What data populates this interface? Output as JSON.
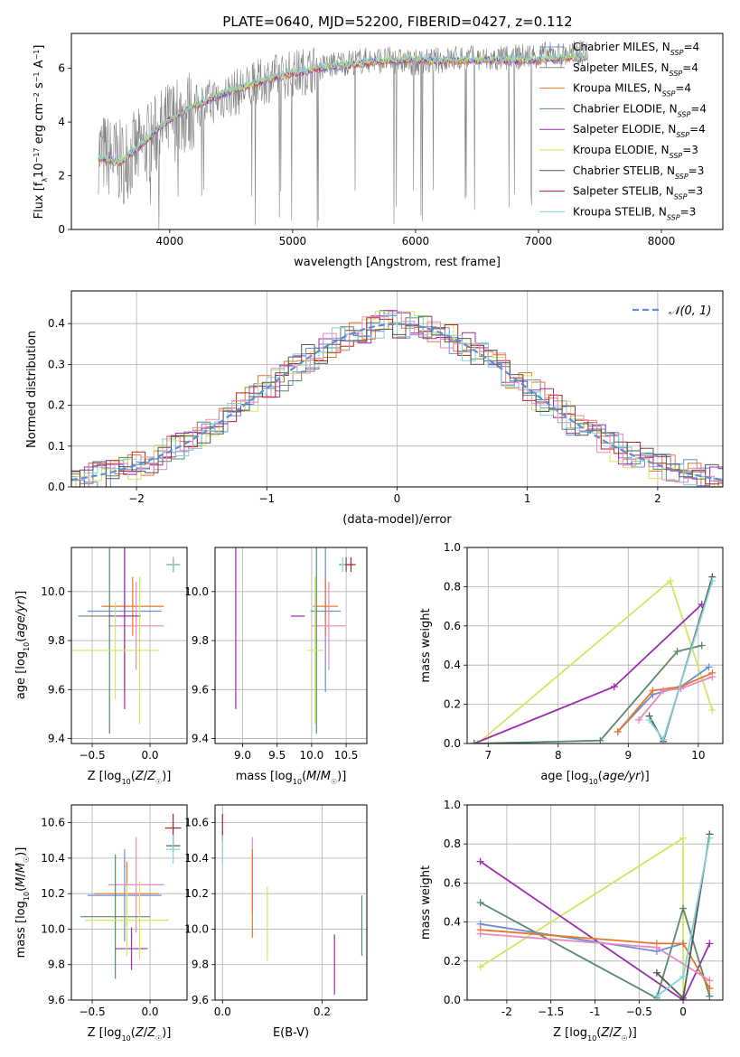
{
  "title": "PLATE=0640, MJD=52200, FIBERID=0427, z=0.112",
  "colors": {
    "chabrier_miles": "#6a8fd9",
    "salpeter_miles": "#8c8c8c",
    "kroupa_miles": "#e8762b",
    "chabrier_elodie": "#5b8a68",
    "salpeter_elodie": "#9b2fae",
    "kroupa_elodie": "#cfe860",
    "chabrier_stelib": "#555555",
    "salpeter_stelib": "#b22222",
    "kroupa_stelib": "#7fd3d8",
    "pink": "#e889c2",
    "normal": "#5b8ed6",
    "grid": "#b0b0b0",
    "spectrum": "#808080"
  },
  "chart_data": [
    {
      "id": "spectrum",
      "type": "line",
      "xlabel": "wavelength [Angstrom, rest frame]",
      "ylabel": "Flux [f_λ10^-17 erg cm^-2 s^-1 A^-1]",
      "xlim": [
        3200,
        8500
      ],
      "ylim": [
        0,
        7.3
      ],
      "xticks": [
        4000,
        5000,
        6000,
        7000,
        8000
      ],
      "yticks": [
        0,
        2,
        4,
        6
      ],
      "grid": false,
      "legend_position": "top-right",
      "legend": [
        "Chabrier MILES, N_SSP=4",
        "Salpeter MILES, N_SSP=4",
        "Kroupa MILES, N_SSP=4",
        "Chabrier ELODIE, N_SSP=4",
        "Salpeter ELODIE, N_SSP=4",
        "Kroupa ELODIE, N_SSP=3",
        "Chabrier STELIB, N_SSP=3",
        "Salpeter STELIB, N_SSP=3",
        "Kroupa STELIB, N_SSP=3"
      ],
      "data_x": [
        3420,
        3600,
        3800,
        4000,
        4200,
        4400,
        4600,
        4800,
        5000,
        5200,
        5400,
        5600,
        5800,
        6000,
        6200,
        6400,
        6600,
        6800,
        7000,
        7200,
        7400
      ],
      "data_y": [
        2.9,
        2.5,
        3.1,
        4.0,
        4.5,
        4.9,
        5.2,
        5.6,
        5.8,
        6.0,
        6.2,
        6.3,
        6.3,
        6.2,
        6.3,
        6.4,
        6.3,
        6.4,
        6.5,
        6.5,
        6.6
      ],
      "model_y": [
        2.7,
        2.5,
        3.3,
        4.1,
        4.6,
        5.0,
        5.3,
        5.6,
        5.8,
        6.0,
        6.1,
        6.2,
        6.3,
        6.3,
        6.3,
        6.3,
        6.3,
        6.3,
        6.3,
        6.4,
        6.4
      ]
    },
    {
      "id": "residuals",
      "type": "line",
      "xlabel": "(data-model)/error",
      "ylabel": "Normed distribution",
      "xlim": [
        -2.5,
        2.5
      ],
      "ylim": [
        0,
        0.48
      ],
      "xticks": [
        -2,
        -1,
        0,
        1,
        2
      ],
      "yticks": [
        0.0,
        0.1,
        0.2,
        0.3,
        0.4
      ],
      "grid": true,
      "legend_position": "top-right",
      "legend": [
        "𝒩(0, 1)"
      ]
    },
    {
      "id": "age_vs_Z",
      "type": "scatter",
      "xlabel": "Z [log10(Z/Z☉)]",
      "ylabel": "age [log10(age/yr)]",
      "xlim": [
        -0.68,
        0.32
      ],
      "ylim": [
        9.38,
        10.18
      ],
      "xticks": [
        -0.5,
        0.0
      ],
      "yticks": [
        9.4,
        9.6,
        9.8,
        10.0
      ],
      "grid": true,
      "points": [
        {
          "s": "chabrier_miles",
          "x": -0.22,
          "y": 9.92,
          "xerr": 0.32,
          "yerr": 0.33
        },
        {
          "s": "kroupa_miles",
          "x": -0.15,
          "y": 9.94,
          "xerr": 0.27,
          "yerr": 0.12
        },
        {
          "s": "pink",
          "x": -0.12,
          "y": 9.86,
          "xerr": 0.24,
          "yerr": 0.18
        },
        {
          "s": "chabrier_elodie",
          "x": -0.35,
          "y": 9.9,
          "xerr": 0.27,
          "yerr": 0.48
        },
        {
          "s": "salpeter_elodie",
          "x": -0.22,
          "y": 9.9,
          "xerr": 0.14,
          "yerr": 0.38
        },
        {
          "s": "kroupa_elodie",
          "x": -0.3,
          "y": 9.76,
          "xerr": 0.38,
          "yerr": 0.2
        },
        {
          "s": "kroupa_elodie",
          "x": -0.09,
          "y": 9.76,
          "xerr": 0.0,
          "yerr": 0.3
        },
        {
          "s": "chabrier_stelib",
          "x": 0.2,
          "y": 10.11,
          "xerr": 0.06,
          "yerr": 0.03
        },
        {
          "s": "salpeter_stelib",
          "x": 0.2,
          "y": 10.11,
          "xerr": 0.05,
          "yerr": 0.03
        },
        {
          "s": "kroupa_stelib",
          "x": 0.2,
          "y": 10.11,
          "xerr": 0.06,
          "yerr": 0.03
        }
      ]
    },
    {
      "id": "age_vs_mass",
      "type": "scatter",
      "xlabel": "mass [log10(M/M☉)]",
      "ylabel": "",
      "xlim": [
        8.6,
        10.8
      ],
      "ylim": [
        9.38,
        10.18
      ],
      "xticks": [
        9.0,
        9.5,
        10.0,
        10.5
      ],
      "yticks": [
        9.4,
        9.6,
        9.8,
        10.0
      ],
      "grid": true,
      "points": [
        {
          "s": "chabrier_miles",
          "x": 10.2,
          "y": 9.92,
          "xerr": 0.22,
          "yerr": 0.33
        },
        {
          "s": "kroupa_miles",
          "x": 10.2,
          "y": 9.94,
          "xerr": 0.18,
          "yerr": 0.12
        },
        {
          "s": "pink",
          "x": 10.25,
          "y": 9.86,
          "xerr": 0.25,
          "yerr": 0.18
        },
        {
          "s": "chabrier_elodie",
          "x": 10.07,
          "y": 9.9,
          "xerr": 0.0,
          "yerr": 0.48
        },
        {
          "s": "salpeter_elodie",
          "x": 8.9,
          "y": 9.9,
          "xerr": 0.0,
          "yerr": 0.38
        },
        {
          "s": "salpeter_elodie",
          "x": 9.8,
          "y": 9.9,
          "xerr": 0.1,
          "yerr": 0.0
        },
        {
          "s": "kroupa_elodie",
          "x": 10.05,
          "y": 9.76,
          "xerr": 0.12,
          "yerr": 0.3
        },
        {
          "s": "chabrier_stelib",
          "x": 10.5,
          "y": 10.11,
          "xerr": 0.1,
          "yerr": 0.03
        },
        {
          "s": "salpeter_stelib",
          "x": 10.57,
          "y": 10.11,
          "xerr": 0.07,
          "yerr": 0.03
        },
        {
          "s": "kroupa_stelib",
          "x": 10.45,
          "y": 10.11,
          "xerr": 0.03,
          "yerr": 0.03
        }
      ]
    },
    {
      "id": "weight_vs_age",
      "type": "line",
      "xlabel": "age [log10(age/yr)]",
      "ylabel": "mass weight",
      "xlim": [
        6.7,
        10.35
      ],
      "ylim": [
        0,
        1.0
      ],
      "xticks": [
        7,
        8,
        9,
        10
      ],
      "yticks": [
        0.0,
        0.2,
        0.4,
        0.6,
        0.8,
        1.0
      ],
      "grid": true,
      "series": [
        {
          "s": "kroupa_elodie",
          "x": [
            6.85,
            9.6,
            10.2
          ],
          "y": [
            0.0,
            0.83,
            0.17
          ]
        },
        {
          "s": "salpeter_elodie",
          "x": [
            6.8,
            8.8,
            10.05
          ],
          "y": [
            0.0,
            0.29,
            0.71
          ]
        },
        {
          "s": "chabrier_elodie",
          "x": [
            6.8,
            8.6,
            9.7,
            10.05
          ],
          "y": [
            0.0,
            0.015,
            0.47,
            0.5
          ]
        },
        {
          "s": "chabrier_miles",
          "x": [
            8.85,
            9.35,
            9.75,
            10.15
          ],
          "y": [
            0.06,
            0.25,
            0.29,
            0.39
          ]
        },
        {
          "s": "kroupa_miles",
          "x": [
            8.85,
            9.35,
            9.75,
            10.2
          ],
          "y": [
            0.06,
            0.27,
            0.29,
            0.36
          ]
        },
        {
          "s": "pink",
          "x": [
            9.15,
            9.5,
            9.75,
            10.2
          ],
          "y": [
            0.12,
            0.27,
            0.28,
            0.34
          ]
        },
        {
          "s": "chabrier_stelib",
          "x": [
            9.3,
            9.5,
            10.2
          ],
          "y": [
            0.14,
            0.01,
            0.85
          ]
        },
        {
          "s": "kroupa_stelib",
          "x": [
            9.3,
            9.5,
            10.2
          ],
          "y": [
            0.12,
            0.02,
            0.83
          ]
        }
      ]
    },
    {
      "id": "mass_vs_Z",
      "type": "scatter",
      "xlabel": "Z [log10(Z/Z☉)]",
      "ylabel": "mass [log10(M/M☉)]",
      "xlim": [
        -0.68,
        0.32
      ],
      "ylim": [
        9.6,
        10.7
      ],
      "xticks": [
        -0.5,
        0.0
      ],
      "yticks": [
        9.6,
        9.8,
        10.0,
        10.2,
        10.4,
        10.6
      ],
      "grid": true,
      "points": [
        {
          "s": "chabrier_miles",
          "x": -0.22,
          "y": 10.19,
          "xerr": 0.32,
          "yerr": 0.26
        },
        {
          "s": "kroupa_miles",
          "x": -0.2,
          "y": 10.2,
          "xerr": 0.28,
          "yerr": 0.18
        },
        {
          "s": "pink",
          "x": -0.12,
          "y": 10.25,
          "xerr": 0.24,
          "yerr": 0.27
        },
        {
          "s": "chabrier_elodie",
          "x": -0.3,
          "y": 10.07,
          "xerr": 0.3,
          "yerr": 0.35
        },
        {
          "s": "salpeter_elodie",
          "x": -0.16,
          "y": 9.89,
          "xerr": 0.14,
          "yerr": 0.12
        },
        {
          "s": "kroupa_elodie",
          "x": -0.2,
          "y": 10.05,
          "xerr": 0.36,
          "yerr": 0.2
        },
        {
          "s": "kroupa_elodie",
          "x": -0.09,
          "y": 10.05,
          "xerr": 0.0,
          "yerr": 0.22
        },
        {
          "s": "chabrier_stelib",
          "x": 0.2,
          "y": 10.47,
          "xerr": 0.06,
          "yerr": 0.03
        },
        {
          "s": "salpeter_stelib",
          "x": 0.2,
          "y": 10.57,
          "xerr": 0.07,
          "yerr": 0.08
        },
        {
          "s": "kroupa_stelib",
          "x": 0.2,
          "y": 10.45,
          "xerr": 0.06,
          "yerr": 0.08
        }
      ]
    },
    {
      "id": "mass_vs_ebv",
      "type": "scatter",
      "xlabel": "E(B-V)",
      "ylabel": "",
      "xlim": [
        -0.015,
        0.29
      ],
      "ylim": [
        9.6,
        10.7
      ],
      "xticks": [
        0.0,
        0.2
      ],
      "yticks": [
        9.6,
        9.8,
        10.0,
        10.2,
        10.4,
        10.6
      ],
      "grid": true,
      "points": [
        {
          "s": "salpeter_stelib",
          "x": 0.0,
          "y": 10.57,
          "xerr": 0.0,
          "yerr": 0.08
        },
        {
          "s": "kroupa_stelib",
          "x": 0.0,
          "y": 10.45,
          "xerr": 0.0,
          "yerr": 0.08
        },
        {
          "s": "pink",
          "x": 0.06,
          "y": 10.3,
          "xerr": 0.0,
          "yerr": 0.22
        },
        {
          "s": "kroupa_miles",
          "x": 0.06,
          "y": 10.2,
          "xerr": 0.0,
          "yerr": 0.25
        },
        {
          "s": "kroupa_elodie",
          "x": 0.09,
          "y": 10.03,
          "xerr": 0.0,
          "yerr": 0.21
        },
        {
          "s": "salpeter_elodie",
          "x": 0.225,
          "y": 9.8,
          "xerr": 0.0,
          "yerr": 0.17
        },
        {
          "s": "chabrier_elodie",
          "x": 0.28,
          "y": 10.02,
          "xerr": 0.0,
          "yerr": 0.17
        }
      ]
    },
    {
      "id": "weight_vs_Z",
      "type": "line",
      "xlabel": "Z [log10(Z/Z☉)]",
      "ylabel": "mass weight",
      "xlim": [
        -2.45,
        0.45
      ],
      "ylim": [
        0,
        1.0
      ],
      "xticks": [
        -2.0,
        -1.5,
        -1.0,
        -0.5,
        0.0
      ],
      "yticks": [
        0.0,
        0.2,
        0.4,
        0.6,
        0.8,
        1.0
      ],
      "grid": true,
      "series": [
        {
          "s": "kroupa_elodie",
          "x": [
            -2.3,
            0.0,
            0.0
          ],
          "y": [
            0.17,
            0.83,
            0.0
          ]
        },
        {
          "s": "salpeter_elodie",
          "x": [
            -2.3,
            0.0,
            0.3
          ],
          "y": [
            0.71,
            0.0,
            0.29
          ]
        },
        {
          "s": "chabrier_elodie",
          "x": [
            -2.3,
            -0.3,
            0.0,
            0.3
          ],
          "y": [
            0.5,
            0.01,
            0.47,
            0.02
          ]
        },
        {
          "s": "chabrier_miles",
          "x": [
            -2.3,
            -0.3,
            0.0
          ],
          "y": [
            0.39,
            0.25,
            0.29
          ]
        },
        {
          "s": "kroupa_miles",
          "x": [
            -2.3,
            -0.3,
            0.0,
            0.3
          ],
          "y": [
            0.36,
            0.29,
            0.29,
            0.06
          ]
        },
        {
          "s": "pink",
          "x": [
            -2.3,
            -0.3,
            0.3
          ],
          "y": [
            0.34,
            0.27,
            0.1
          ]
        },
        {
          "s": "chabrier_stelib",
          "x": [
            -0.3,
            0.0,
            0.3
          ],
          "y": [
            0.14,
            0.01,
            0.85
          ]
        },
        {
          "s": "kroupa_stelib",
          "x": [
            -0.3,
            0.0,
            0.3
          ],
          "y": [
            0.02,
            0.12,
            0.83
          ]
        }
      ]
    }
  ]
}
